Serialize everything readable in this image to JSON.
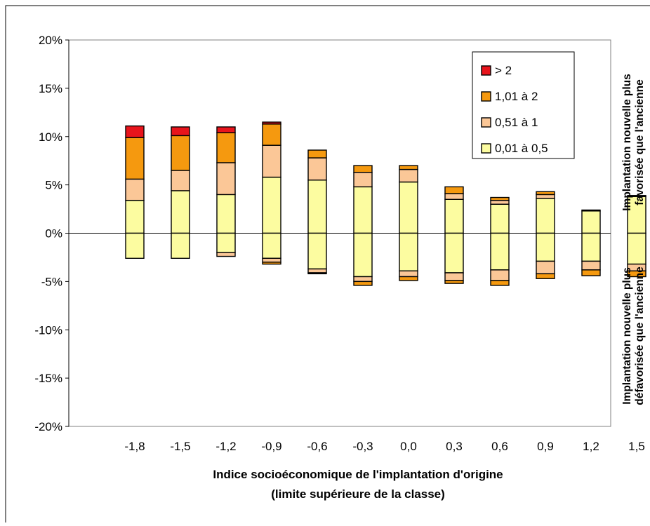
{
  "chart_data": {
    "type": "bar",
    "stacked": true,
    "categories": [
      "-1,8",
      "-1,5",
      "-1,2",
      "-0,9",
      "-0,6",
      "-0,3",
      "0,0",
      "0,3",
      "0,6",
      "0,9",
      "1,2",
      "1,5"
    ],
    "xlabel": [
      "Indice socioéconomique de l'implantation d'origine",
      "(limite supérieure de la classe)"
    ],
    "ylim": [
      -20,
      20
    ],
    "yticks": [
      20,
      15,
      10,
      5,
      0,
      -5,
      -10,
      -15,
      -20
    ],
    "ytick_labels": [
      "20%",
      "15%",
      "10%",
      "5%",
      "0%",
      "-5%",
      "-10%",
      "-15%",
      "-20%"
    ],
    "right_annotations": {
      "top": [
        "Implantation nouvelle plus",
        "favorisée que l'ancienne"
      ],
      "bottom": [
        "Implantation nouvelle plus",
        "défavorisée que l'ancienne"
      ]
    },
    "legend_position": "top-right",
    "colors": {
      "gt2": "#e8141c",
      "1_01_2": "#f5990f",
      "0_51_1": "#fbc797",
      "0_01_0_5": "#fcfca0"
    },
    "series": [
      {
        "name": "> 2",
        "key": "gt2",
        "positive": [
          1.2,
          0.9,
          0.6,
          0.2,
          0,
          0,
          0,
          0,
          0,
          0,
          0,
          0
        ],
        "negative": [
          0,
          0,
          0,
          0,
          0,
          0,
          0,
          0,
          0,
          0,
          0,
          0
        ]
      },
      {
        "name": "1,01 à 2",
        "key": "1_01_2",
        "positive": [
          4.3,
          3.6,
          3.1,
          2.2,
          0.8,
          0.7,
          0.4,
          0.7,
          0.3,
          0.3,
          0.1,
          0.1
        ],
        "negative": [
          0,
          0,
          0,
          0.2,
          0.1,
          0.4,
          0.4,
          0.3,
          0.5,
          0.5,
          0.6,
          0.6
        ]
      },
      {
        "name": "0,51 à 1",
        "key": "0_51_1",
        "positive": [
          2.2,
          2.1,
          3.3,
          3.3,
          2.3,
          1.5,
          1.3,
          0.6,
          0.4,
          0.4,
          0,
          0
        ],
        "negative": [
          0,
          0,
          0.4,
          0.4,
          0.4,
          0.5,
          0.6,
          0.8,
          1.1,
          1.3,
          0.9,
          0.7
        ]
      },
      {
        "name": "0,01 à 0,5",
        "key": "0_01_0_5",
        "positive": [
          3.4,
          4.4,
          4.0,
          5.8,
          5.5,
          4.8,
          5.3,
          3.5,
          3.0,
          3.6,
          2.3,
          3.8
        ],
        "negative": [
          2.6,
          2.6,
          2.0,
          2.6,
          3.7,
          4.5,
          3.9,
          4.1,
          3.8,
          2.9,
          2.9,
          3.2
        ]
      }
    ],
    "legend_order": [
      "gt2",
      "1_01_2",
      "0_51_1",
      "0_01_0_5"
    ]
  }
}
